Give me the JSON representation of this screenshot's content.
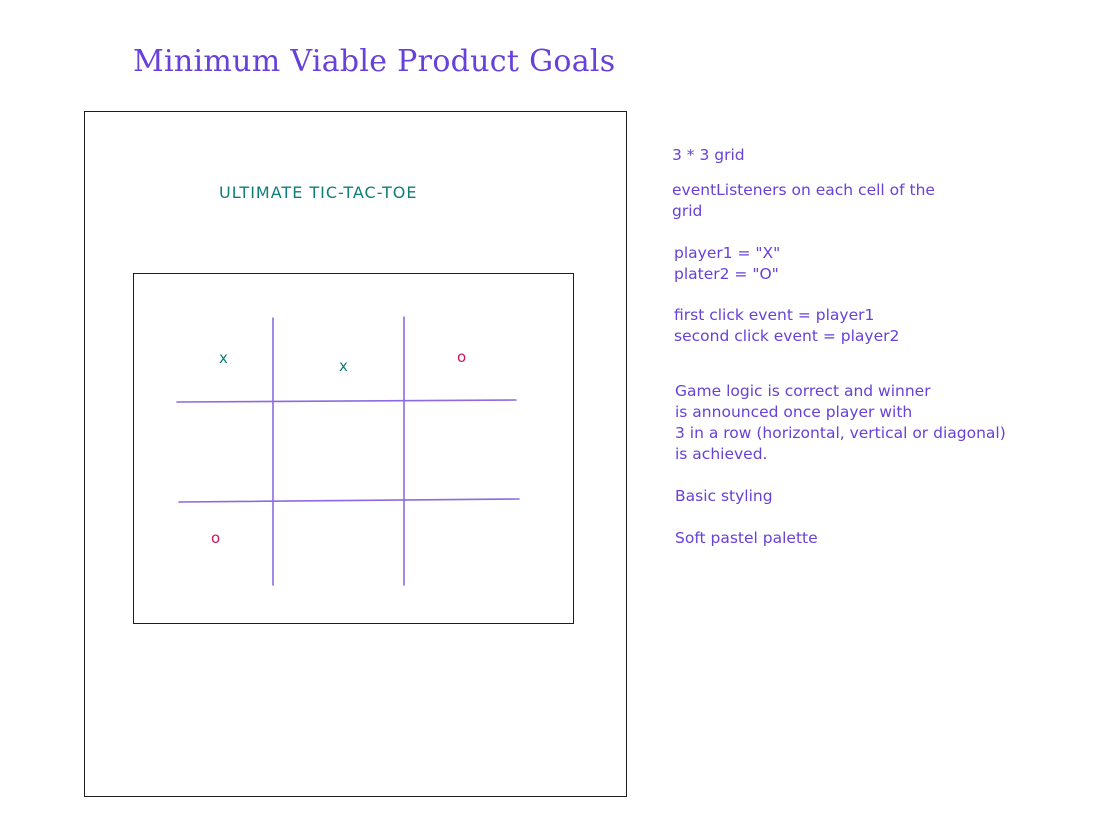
{
  "title": "Minimum Viable Product Goals",
  "mockup": {
    "game_title": "ULTIMATE TIC-TAC-TOE",
    "marks": [
      {
        "cell": "row1-col1",
        "symbol": "x"
      },
      {
        "cell": "row1-col2",
        "symbol": "x"
      },
      {
        "cell": "row1-col3",
        "symbol": "o"
      },
      {
        "cell": "row3-col1",
        "symbol": "o"
      }
    ]
  },
  "notes": [
    "3 * 3 grid",
    "eventListeners on each cell of the\ngrid",
    "player1 = \"X\"\nplater2 = \"O\"",
    "first click event = player1\nsecond click event = player2",
    "Game logic is correct and winner\nis announced once player with\n3 in a row (horizontal, vertical or diagonal)\nis achieved.",
    "Basic styling",
    "Soft pastel palette"
  ],
  "colors": {
    "title": "#6741d9",
    "grid_lines": "#8c6be0",
    "x_mark": "#0c7e7a",
    "o_mark": "#c2185b",
    "outline": "#1e1e1e"
  }
}
